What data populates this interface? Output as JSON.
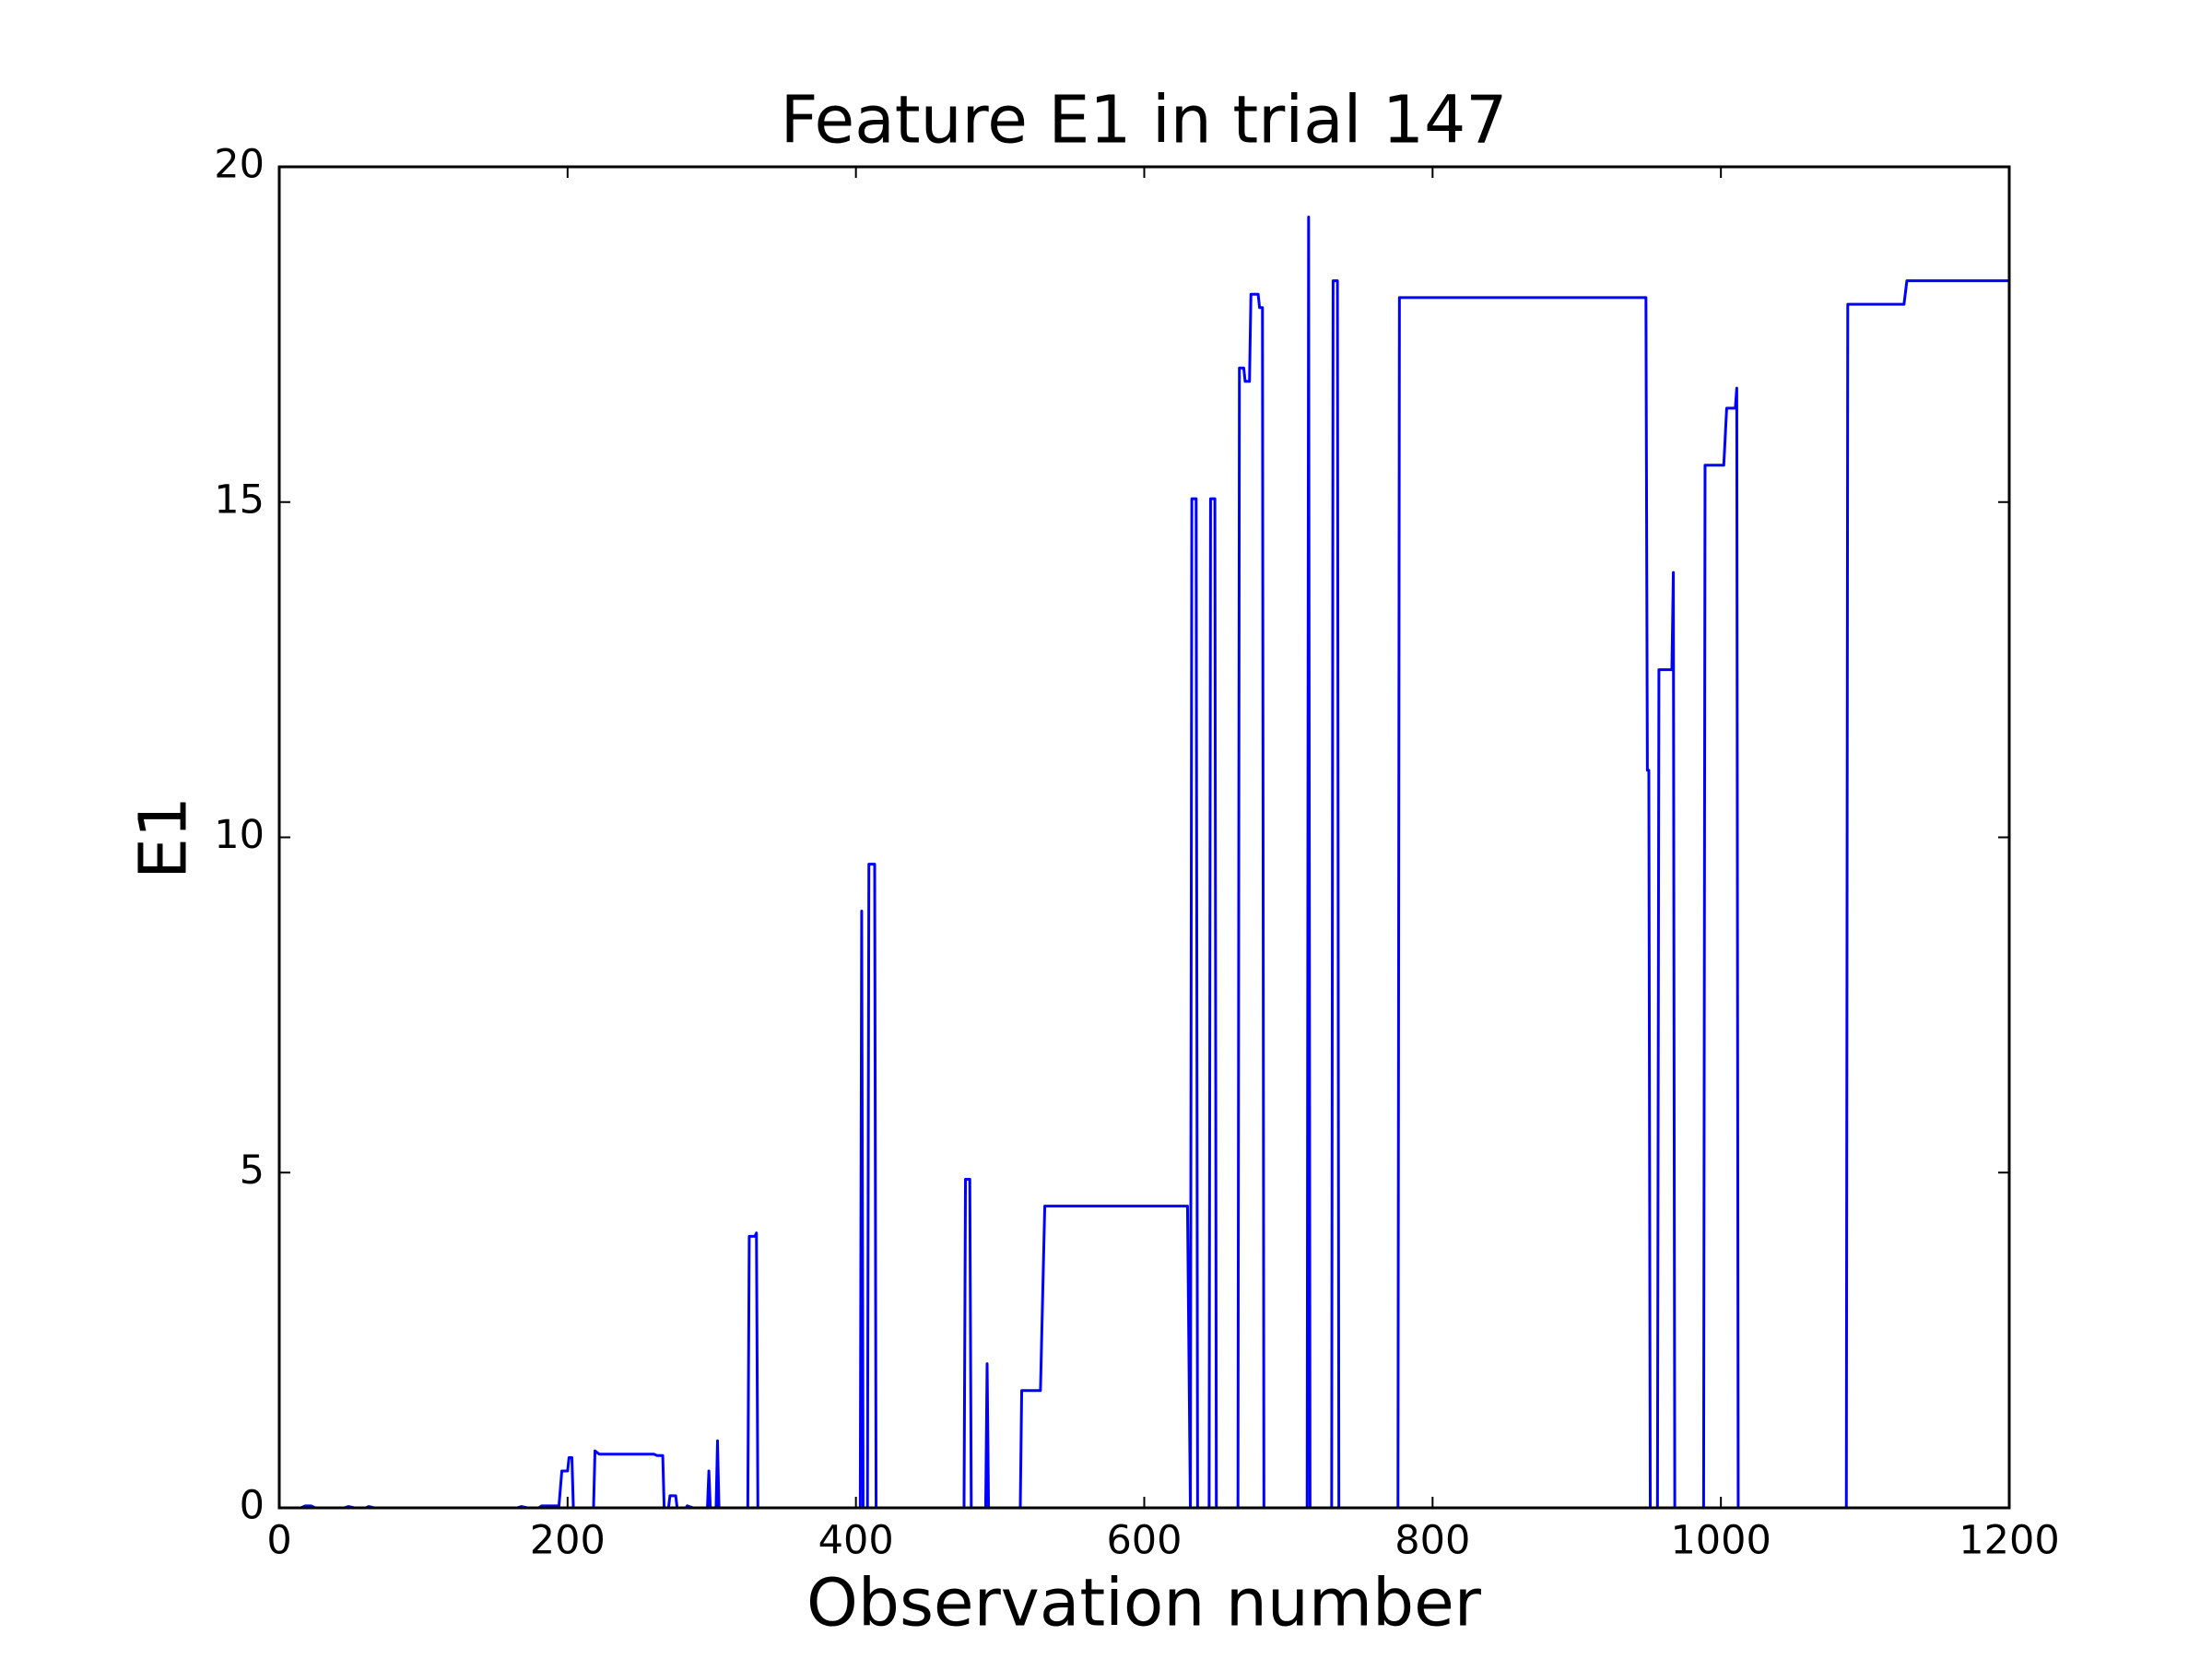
{
  "chart_data": {
    "type": "line",
    "title": "Feature E1 in trial 147",
    "x_label": "Observation number",
    "y_label": "E1",
    "color": "#0000ff",
    "xlim": [
      0,
      1200
    ],
    "xticks": [
      0,
      200,
      400,
      600,
      800,
      1000,
      1200
    ],
    "ylim": [
      0,
      20
    ],
    "yticks": [
      0,
      5,
      10,
      15,
      20
    ],
    "x": [
      0,
      15,
      18,
      22,
      25,
      45,
      48,
      52,
      60,
      62,
      66,
      165,
      168,
      172,
      180,
      182,
      194,
      196,
      200,
      201,
      203,
      204,
      218,
      219,
      222,
      260,
      262,
      266,
      267,
      270,
      271,
      275,
      276,
      282,
      283,
      287,
      297,
      298,
      299,
      303,
      304,
      305,
      325,
      326,
      330,
      331,
      332,
      403,
      404,
      405,
      408,
      409,
      413,
      414,
      475,
      476,
      479,
      480,
      490,
      491,
      492,
      514,
      515,
      528,
      531,
      630,
      632,
      633,
      636,
      637,
      645,
      646,
      649,
      650,
      665,
      666,
      669,
      670,
      673,
      674,
      679,
      680,
      682,
      683,
      713,
      714,
      715,
      730,
      731,
      734,
      735,
      776,
      777,
      948,
      949,
      950,
      951,
      956,
      957,
      966,
      967,
      968,
      988,
      989,
      1002,
      1004,
      1010,
      1011,
      1012,
      1087,
      1088,
      1127,
      1129,
      1200
    ],
    "values": [
      0,
      0,
      0.03,
      0.03,
      0,
      0,
      0.02,
      0,
      0,
      0.02,
      0,
      0,
      0.02,
      0,
      0,
      0.03,
      0.03,
      0.55,
      0.55,
      0.75,
      0.75,
      0,
      0,
      0.85,
      0.8,
      0.8,
      0.78,
      0.78,
      0,
      0,
      0.18,
      0.18,
      0,
      0,
      0.03,
      0,
      0,
      0.55,
      0,
      0,
      1.0,
      0,
      0,
      4.05,
      4.05,
      4.1,
      0,
      0,
      8.9,
      0,
      0,
      9.6,
      9.6,
      0,
      0,
      4.9,
      4.9,
      0,
      0,
      2.15,
      0,
      0,
      1.75,
      1.75,
      4.5,
      4.5,
      0,
      15.05,
      15.05,
      0,
      0,
      15.05,
      15.05,
      0,
      0,
      17,
      17,
      16.8,
      16.8,
      18.1,
      18.1,
      17.9,
      17.9,
      0,
      0,
      19.25,
      0,
      0,
      18.3,
      18.3,
      0,
      0,
      18.05,
      18.05,
      11,
      11,
      0,
      0,
      12.5,
      12.5,
      13.95,
      0,
      0,
      15.55,
      15.55,
      16.4,
      16.4,
      16.7,
      0,
      0,
      17.95,
      17.95,
      18.3,
      18.3
    ]
  }
}
